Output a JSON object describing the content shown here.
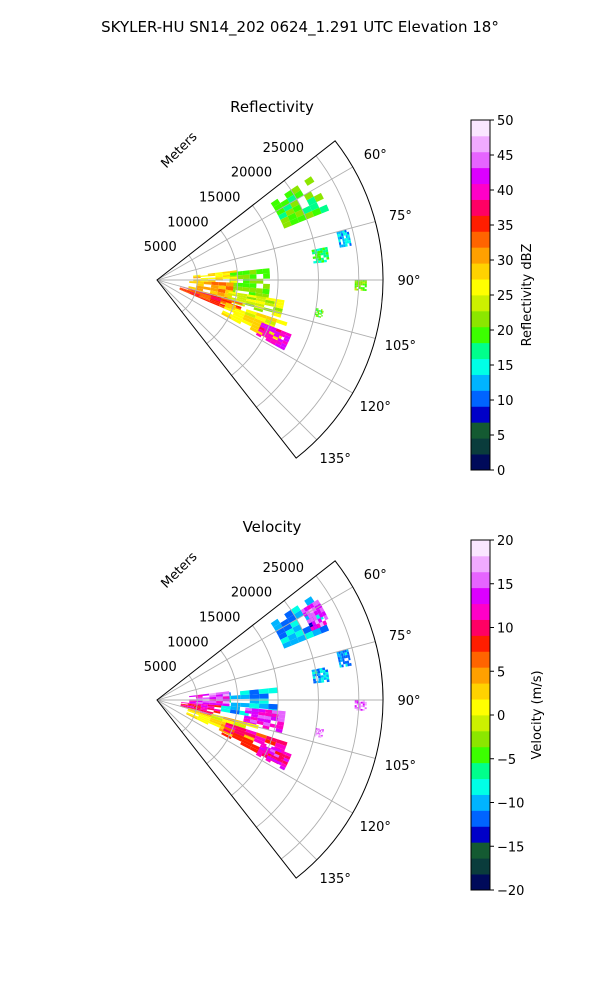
{
  "suptitle": "SKYLER-HU  SN14_202  0624_1.291 UTC Elevation 18°",
  "colors": {
    "grid": "#b0b0b0",
    "axis": "#000000"
  },
  "chart_data": [
    {
      "type": "heatmap",
      "subtype": "radar-ppi-sector",
      "title": "Reflectivity",
      "radial_axis_label": "Meters",
      "radial_ticks": [
        5000,
        10000,
        15000,
        20000,
        25000
      ],
      "radial_tick_labels": [
        "5000",
        "10000",
        "15000",
        "20000",
        "25000"
      ],
      "rmax": 28000,
      "azimuth_range_deg": [
        52,
        142
      ],
      "azimuth_ticks_deg": [
        60,
        75,
        90,
        105,
        120,
        135
      ],
      "azimuth_tick_labels": [
        "60°",
        "75°",
        "90°",
        "105°",
        "120°",
        "135°"
      ],
      "grid": true,
      "colorbar": {
        "label": "Reflectivity dBZ",
        "range": [
          0,
          50
        ],
        "ticks": [
          0,
          5,
          10,
          15,
          20,
          25,
          30,
          35,
          40,
          45,
          50
        ],
        "tick_labels": [
          "0",
          "5",
          "10",
          "15",
          "20",
          "25",
          "30",
          "35",
          "40",
          "45",
          "50"
        ],
        "colormap": [
          "#000a5a",
          "#0a3c3c",
          "#145a32",
          "#0000c8",
          "#0064ff",
          "#00b4ff",
          "#00ffe6",
          "#00ff8c",
          "#3cff00",
          "#8ce600",
          "#ccf000",
          "#ffff00",
          "#ffd200",
          "#ffa000",
          "#ff6400",
          "#ff1e00",
          "#ff0064",
          "#ff00c8",
          "#dc00ff",
          "#e664ff",
          "#f0aaff",
          "#fae6ff"
        ]
      },
      "echo_regions": [
        {
          "az": [
            56,
            68
          ],
          "r": [
            17000,
            23000
          ],
          "value": 19
        },
        {
          "az": [
            79,
            84
          ],
          "r": [
            19500,
            21500
          ],
          "value": 17
        },
        {
          "az": [
            75,
            80
          ],
          "r": [
            23000,
            24500
          ],
          "value": 13
        },
        {
          "az": [
            90,
            93
          ],
          "r": [
            24500,
            26000
          ],
          "value": 21
        },
        {
          "az": [
            100,
            103
          ],
          "r": [
            20000,
            21000
          ],
          "value": 19
        },
        {
          "az": [
            84,
            100
          ],
          "r": [
            9000,
            14000
          ],
          "value": 20
        },
        {
          "az": [
            83,
            92
          ],
          "r": [
            4500,
            10000
          ],
          "value": 27
        },
        {
          "az": [
            92,
            110
          ],
          "r": [
            4000,
            9500
          ],
          "value": 30
        },
        {
          "az": [
            99,
            107
          ],
          "r": [
            9000,
            16000
          ],
          "value": 24
        },
        {
          "az": [
            105,
            113
          ],
          "r": [
            3000,
            11000
          ],
          "value": 34
        },
        {
          "az": [
            108,
            118
          ],
          "r": [
            9000,
            17000
          ],
          "value": 26
        },
        {
          "az": [
            112,
            119
          ],
          "r": [
            14000,
            18000
          ],
          "value": 40
        }
      ]
    },
    {
      "type": "heatmap",
      "subtype": "radar-ppi-sector",
      "title": "Velocity",
      "radial_axis_label": "Meters",
      "radial_ticks": [
        5000,
        10000,
        15000,
        20000,
        25000
      ],
      "radial_tick_labels": [
        "5000",
        "10000",
        "15000",
        "20000",
        "25000"
      ],
      "rmax": 28000,
      "azimuth_range_deg": [
        52,
        142
      ],
      "azimuth_ticks_deg": [
        60,
        75,
        90,
        105,
        120,
        135
      ],
      "azimuth_tick_labels": [
        "60°",
        "75°",
        "90°",
        "105°",
        "120°",
        "135°"
      ],
      "grid": true,
      "colorbar": {
        "label": "Velocity (m/s)",
        "range": [
          -20,
          20
        ],
        "ticks": [
          -20,
          -15,
          -10,
          -5,
          0,
          5,
          10,
          15,
          20
        ],
        "tick_labels": [
          "−20",
          "−15",
          "−10",
          "−5",
          "0",
          "5",
          "10",
          "15",
          "20"
        ],
        "colormap": [
          "#000a5a",
          "#0a3c3c",
          "#145a32",
          "#0000c8",
          "#0064ff",
          "#00b4ff",
          "#00ffe6",
          "#00ff8c",
          "#3cff00",
          "#8ce600",
          "#ccf000",
          "#ffff00",
          "#ffd200",
          "#ffa000",
          "#ff6400",
          "#ff1e00",
          "#ff0064",
          "#ff00c8",
          "#dc00ff",
          "#e664ff",
          "#f0aaff",
          "#fae6ff"
        ]
      },
      "echo_regions": [
        {
          "az": [
            56,
            68
          ],
          "r": [
            17000,
            23000
          ],
          "value": -11
        },
        {
          "az": [
            58,
            66
          ],
          "r": [
            21000,
            23500
          ],
          "value": 14
        },
        {
          "az": [
            79,
            84
          ],
          "r": [
            19500,
            21500
          ],
          "value": -10
        },
        {
          "az": [
            75,
            80
          ],
          "r": [
            23000,
            24500
          ],
          "value": -11
        },
        {
          "az": [
            90,
            93
          ],
          "r": [
            24500,
            26000
          ],
          "value": 15
        },
        {
          "az": [
            100,
            103
          ],
          "r": [
            20000,
            21000
          ],
          "value": 16
        },
        {
          "az": [
            84,
            100
          ],
          "r": [
            8000,
            15000
          ],
          "value": -10
        },
        {
          "az": [
            83,
            95
          ],
          "r": [
            4000,
            9000
          ],
          "value": 14
        },
        {
          "az": [
            95,
            105
          ],
          "r": [
            11000,
            16000
          ],
          "value": 13
        },
        {
          "az": [
            95,
            106
          ],
          "r": [
            3000,
            8000
          ],
          "value": 10
        },
        {
          "az": [
            104,
            116
          ],
          "r": [
            4000,
            13000
          ],
          "value": 1
        },
        {
          "az": [
            108,
            118
          ],
          "r": [
            9000,
            17000
          ],
          "value": 9
        },
        {
          "az": [
            112,
            119
          ],
          "r": [
            14000,
            18000
          ],
          "value": 12
        }
      ]
    }
  ]
}
